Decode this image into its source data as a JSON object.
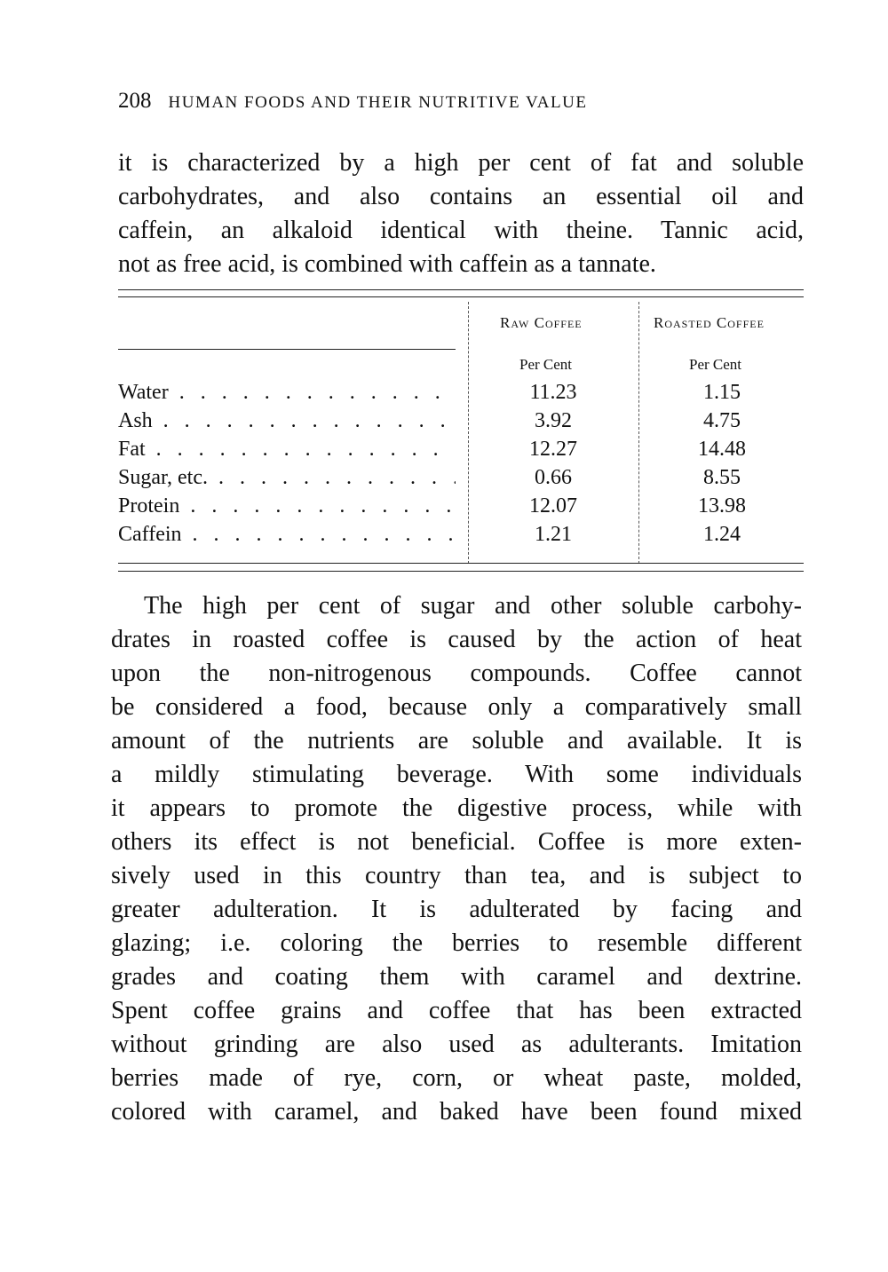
{
  "header": {
    "page_number": "208",
    "running_title": "Human Foods and Their Nutritive Value"
  },
  "paragraph1": [
    "it is characterized by a high per cent of fat and soluble",
    "carbohydrates, and also contains an essential oil and",
    "caffein, an alkaloid identical with theine.  Tannic acid,",
    "not as free acid, is combined with caffein as a tannate."
  ],
  "table": {
    "columns": [
      "Raw Coffee",
      "Roasted Coffee"
    ],
    "units": [
      "Per Cent",
      "Per Cent"
    ],
    "rows": [
      {
        "label": "Water",
        "raw": "11.23",
        "roasted": "1.15"
      },
      {
        "label": "Ash",
        "raw": "3.92",
        "roasted": "4.75"
      },
      {
        "label": "Fat",
        "raw": "12.27",
        "roasted": "14.48"
      },
      {
        "label": "Sugar, etc.",
        "raw": "0.66",
        "roasted": "8.55"
      },
      {
        "label": "Protein",
        "raw": "12.07",
        "roasted": "13.98"
      },
      {
        "label": "Caffein",
        "raw": "1.21",
        "roasted": "1.24"
      }
    ]
  },
  "paragraph2": [
    "The high per cent of sugar and other soluble carbohy-",
    "drates in roasted coffee is caused by the action of heat",
    "upon the non-nitrogenous compounds.  Coffee cannot",
    "be considered a food, because only a comparatively small",
    "amount of the nutrients are soluble and available.  It is",
    "a mildly stimulating beverage.  With some individuals",
    "it appears to promote the digestive process, while with",
    "others its effect is not beneficial.  Coffee is more exten-",
    "sively used in this country than tea, and is subject to",
    "greater adulteration.  It is adulterated by facing and",
    "glazing; i.e. coloring the berries to resemble different",
    "grades and coating them with caramel and dextrine.",
    "Spent coffee grains and coffee that has been extracted",
    "without grinding are also used as adulterants.  Imitation",
    "berries made of rye, corn, or wheat paste, molded,",
    "colored with caramel, and baked have been found mixed"
  ]
}
